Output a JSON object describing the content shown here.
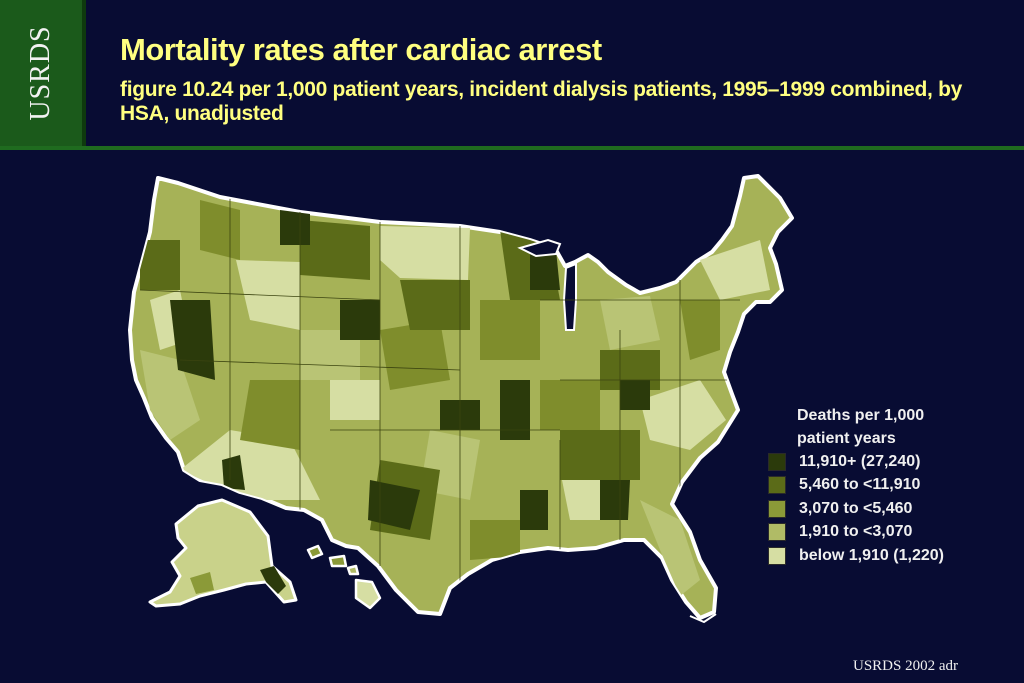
{
  "header": {
    "logo_text": "USRDS",
    "title": "Mortality rates after cardiac arrest",
    "subtitle": "figure 10.24 per 1,000 patient years, incident dialysis patients, 1995–1999 combined, by HSA, unadjusted"
  },
  "legend": {
    "title_line1": "Deaths per 1,000",
    "title_line2": "patient years",
    "items": [
      {
        "label": "11,910+ (27,240)",
        "color": "#2b3a0b"
      },
      {
        "label": "5,460 to <11,910",
        "color": "#5b6b18"
      },
      {
        "label": "3,070 to <5,460",
        "color": "#8b9a38"
      },
      {
        "label": "1,910 to <3,070",
        "color": "#b0bb66"
      },
      {
        "label": "below 1,910 (1,220)",
        "color": "#d6dea3"
      }
    ]
  },
  "footer": "USRDS 2002 adr",
  "colors": {
    "background": "#080c33",
    "logo_green": "#1b5a1b",
    "title_yellow": "#ffff80",
    "map_outline": "#ffffff"
  }
}
